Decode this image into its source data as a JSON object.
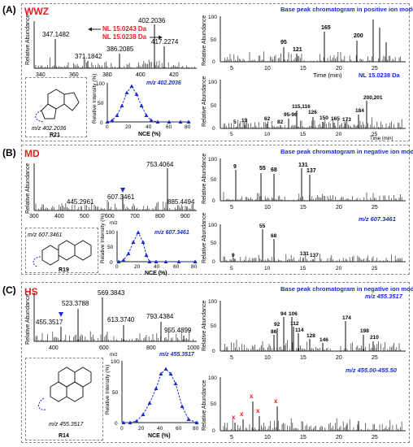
{
  "panels": [
    {
      "label": "(A)",
      "sample": "WWZ",
      "ms": {
        "peaks_labels": [
          "347.1482",
          "371.1842",
          "386.2085",
          "402.2036",
          "417.2274"
        ],
        "x_ticks": [
          "340",
          "360",
          "380",
          "400",
          "420"
        ],
        "nl_labels": [
          "NL 15.0243 Da",
          "NL 15.0238 Da"
        ]
      },
      "compound": {
        "mz_label": "m/z 402.2036",
        "id": "R21"
      },
      "nce": {
        "title": "m/z 402.2036",
        "xlabel": "NCE (%)",
        "ylabel": "Relative Intensity (%)",
        "x_ticks": [
          "0",
          "20",
          "40",
          "60",
          "80"
        ],
        "y_ticks": [
          "0",
          "50",
          "100"
        ]
      },
      "bpc": {
        "title": "Base peak chromatogram  in positive ion mode",
        "x_ticks": [
          "5",
          "10",
          "15",
          "20",
          "25"
        ],
        "xlabel": "Time (min)",
        "peak_labels": [
          "95",
          "121",
          "165",
          "200"
        ]
      },
      "xic": {
        "title": "NL 15.0238 Da",
        "x_ticks": [
          "5",
          "10",
          "15",
          "20",
          "25"
        ],
        "xlabel": "Time (min)",
        "peak_labels": [
          "5",
          "19",
          "62",
          "82",
          "95-96",
          "115,116",
          "126",
          "150",
          "165",
          "173",
          "184",
          "200,201"
        ]
      }
    },
    {
      "label": "(B)",
      "sample": "MD",
      "ms": {
        "peaks_labels": [
          "445.2961",
          "607.3461",
          "753.4064",
          "885.4494"
        ],
        "x_ticks": [
          "300",
          "400",
          "500",
          "600",
          "700",
          "800",
          "900"
        ],
        "xlabel": "m/z"
      },
      "compound": {
        "mz_label": "m/z 607.3461",
        "id": "R19"
      },
      "nce": {
        "title": "m/z 607.3461",
        "xlabel": "NCE (%)",
        "ylabel": "Relative Intensity (%)",
        "x_ticks": [
          "0",
          "20",
          "40",
          "60",
          "80"
        ],
        "y_ticks": [
          "0",
          "50",
          "100"
        ]
      },
      "bpc": {
        "title": "Base peak chromatogram  in negative ion mode",
        "x_ticks": [
          "5",
          "10",
          "15",
          "20",
          "25"
        ],
        "peak_labels": [
          "9",
          "55",
          "68",
          "131",
          "137"
        ]
      },
      "xic": {
        "title": "m/z 607.3461",
        "x_ticks": [
          "5",
          "10",
          "15",
          "20",
          "25"
        ],
        "peak_labels": [
          "9",
          "55",
          "68",
          "131",
          "137"
        ]
      }
    },
    {
      "label": "(C)",
      "sample": "HS",
      "ms": {
        "peaks_labels": [
          "455.3517",
          "523.3788",
          "569.3843",
          "613.3740",
          "793.4384",
          "955.4899"
        ],
        "x_ticks": [
          "400",
          "600",
          "800",
          "1000"
        ],
        "xlabel": "m/z"
      },
      "compound": {
        "mz_label": "m/z 455.3517",
        "id": "R14"
      },
      "nce": {
        "title": "m/z 455.3517",
        "xlabel": "NCE (%)",
        "ylabel": "Relative Intensity (%)",
        "x_ticks": [
          "0",
          "20",
          "40",
          "60",
          "80"
        ],
        "y_ticks": [
          "0",
          "50",
          "100"
        ]
      },
      "bpc": {
        "title": "Base peak chromatogram  in negative ion mode",
        "subtitle": "m/z 455.3517",
        "x_ticks": [
          "5",
          "10",
          "15",
          "20",
          "25"
        ],
        "peak_labels": [
          "86",
          "92",
          "94",
          "106",
          "112",
          "114",
          "128",
          "146",
          "174",
          "198",
          "210"
        ]
      },
      "xic": {
        "title": "m/z 455.00-455.50",
        "x_ticks": [
          "5",
          "10",
          "15",
          "20",
          "25"
        ],
        "marker": "x"
      }
    }
  ],
  "common": {
    "rel_abundance": "Relative Abundance",
    "y_ticks_abund": [
      "0",
      "50",
      "100"
    ]
  },
  "colors": {
    "accent_red": "#e0201f",
    "accent_blue": "#1a2bd6",
    "line": "#222222"
  }
}
